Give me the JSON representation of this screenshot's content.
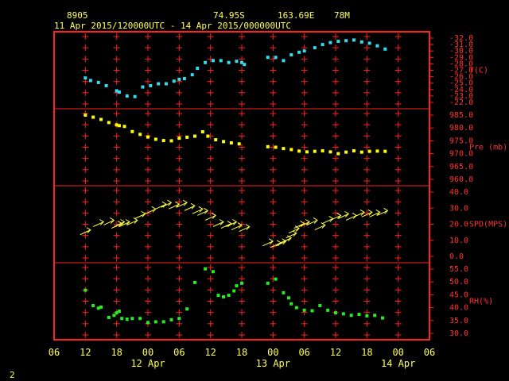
{
  "header": {
    "station_id": "8905",
    "latitude": "74.95S",
    "longitude": "163.69E",
    "elevation": "78M",
    "time_range": "11 Apr 2015/120000UTC - 14 Apr 2015/000000UTC"
  },
  "footer_label": "2",
  "colors": {
    "frame": "#ff2020",
    "text": "#ffff55",
    "temperature": "#33ddee",
    "pressure": "#ffff00",
    "wind": "#ffff44",
    "humidity": "#22ee22"
  },
  "chart_data": {
    "type": "scatter",
    "x_unit": "hours since 11 Apr 2015 06 UTC",
    "x_range": [
      0,
      72
    ],
    "x_tick_labels": [
      "06",
      "12",
      "18",
      "00",
      "06",
      "12",
      "18",
      "00",
      "06",
      "12",
      "18",
      "00",
      "06"
    ],
    "date_labels": [
      {
        "text": "12 Apr",
        "x": 18
      },
      {
        "text": "13 Apr",
        "x": 42
      },
      {
        "text": "14 Apr",
        "x": 66
      }
    ],
    "grid": true,
    "panels": [
      {
        "name": "T(C)",
        "key": "temp",
        "ylim": [
          -32.0,
          -22.0
        ],
        "inverted": true,
        "tick_labels": [
          "-22.0",
          "-23.0",
          "-24.0",
          "-25.0",
          "-26.0",
          "-27.0",
          "-28.0",
          "-29.0",
          "-30.0",
          "-31.0",
          "-32.0"
        ],
        "points": [
          [
            6,
            -25.8
          ],
          [
            7,
            -25.4
          ],
          [
            8.5,
            -25.1
          ],
          [
            10,
            -24.6
          ],
          [
            12,
            -23.8
          ],
          [
            12.5,
            -23.6
          ],
          [
            14,
            -23.0
          ],
          [
            15.5,
            -22.9
          ],
          [
            17,
            -24.4
          ],
          [
            18.5,
            -24.6
          ],
          [
            20,
            -24.9
          ],
          [
            21.5,
            -24.9
          ],
          [
            23,
            -25.3
          ],
          [
            24,
            -25.6
          ],
          [
            25,
            -25.7
          ],
          [
            26.5,
            -26.3
          ],
          [
            27.5,
            -27.3
          ],
          [
            29,
            -28.2
          ],
          [
            30.5,
            -28.5
          ],
          [
            32,
            -28.5
          ],
          [
            33.5,
            -28.2
          ],
          [
            35,
            -28.4
          ],
          [
            36,
            -28.2
          ],
          [
            36.5,
            -27.9
          ],
          [
            41,
            -29.0
          ],
          [
            42.5,
            -29.0
          ],
          [
            44,
            -28.5
          ],
          [
            45.5,
            -29.4
          ],
          [
            47,
            -29.8
          ],
          [
            48,
            -30.0
          ],
          [
            50,
            -30.5
          ],
          [
            51.5,
            -31.0
          ],
          [
            53,
            -31.3
          ],
          [
            54.5,
            -31.5
          ],
          [
            56,
            -31.6
          ],
          [
            57.5,
            -31.7
          ],
          [
            59,
            -31.4
          ],
          [
            60.5,
            -31.2
          ],
          [
            62,
            -30.8
          ],
          [
            63.5,
            -30.3
          ]
        ]
      },
      {
        "name": "Pre (mb)",
        "key": "pres",
        "ylim": [
          960.0,
          985.0
        ],
        "tick_labels": [
          "960.0",
          "965.0",
          "970.0",
          "975.0",
          "980.0",
          "985.0"
        ],
        "points": [
          [
            6,
            985.0
          ],
          [
            7.5,
            984.2
          ],
          [
            9,
            983.3
          ],
          [
            10.5,
            982.1
          ],
          [
            12,
            981.2
          ],
          [
            12.5,
            980.9
          ],
          [
            13.5,
            980.6
          ],
          [
            15,
            978.6
          ],
          [
            16.5,
            977.5
          ],
          [
            18,
            976.5
          ],
          [
            19.5,
            975.6
          ],
          [
            21,
            975.1
          ],
          [
            22.5,
            975.0
          ],
          [
            24,
            976.0
          ],
          [
            25.5,
            976.4
          ],
          [
            27,
            976.8
          ],
          [
            28.5,
            978.5
          ],
          [
            29.5,
            976.8
          ],
          [
            31,
            975.4
          ],
          [
            32.5,
            974.7
          ],
          [
            34,
            974.2
          ],
          [
            35.5,
            973.8
          ],
          [
            41,
            972.7
          ],
          [
            42.5,
            972.5
          ],
          [
            44,
            972.0
          ],
          [
            45.5,
            971.6
          ],
          [
            47,
            971.0
          ],
          [
            48.5,
            970.7
          ],
          [
            50,
            970.9
          ],
          [
            51.5,
            971.1
          ],
          [
            53,
            970.7
          ],
          [
            54.5,
            970.0
          ],
          [
            56,
            970.6
          ],
          [
            57.5,
            971.1
          ],
          [
            59,
            970.6
          ],
          [
            60.5,
            970.9
          ],
          [
            62,
            971.0
          ],
          [
            63.5,
            970.9
          ]
        ]
      },
      {
        "name": "SPD(MPS)",
        "key": "spd",
        "ylim": [
          0.0,
          40.0
        ],
        "tick_labels": [
          "0.0",
          "10.0",
          "20.0",
          "30.0",
          "40.0"
        ],
        "points": [
          [
            6,
            15
          ],
          [
            8.5,
            20
          ],
          [
            10.5,
            21
          ],
          [
            12,
            19
          ],
          [
            12.5,
            20
          ],
          [
            13.5,
            20
          ],
          [
            15,
            21
          ],
          [
            16.5,
            25
          ],
          [
            18.5,
            28
          ],
          [
            20.5,
            31
          ],
          [
            21.5,
            32
          ],
          [
            23,
            31
          ],
          [
            24.5,
            32
          ],
          [
            26,
            30
          ],
          [
            27.5,
            28
          ],
          [
            28.5,
            27
          ],
          [
            30,
            24
          ],
          [
            31.5,
            20
          ],
          [
            33,
            19
          ],
          [
            34,
            20
          ],
          [
            35,
            18
          ],
          [
            36.5,
            17
          ],
          [
            41,
            8
          ],
          [
            42.5,
            7
          ],
          [
            43.5,
            8
          ],
          [
            44.5,
            10
          ],
          [
            45.5,
            13
          ],
          [
            46,
            16
          ],
          [
            47,
            19
          ],
          [
            48,
            20
          ],
          [
            49.5,
            21
          ],
          [
            51,
            18
          ],
          [
            52.5,
            22
          ],
          [
            54,
            24
          ],
          [
            55.5,
            25
          ],
          [
            57,
            24
          ],
          [
            58.5,
            26
          ],
          [
            60,
            26
          ],
          [
            61.5,
            26
          ],
          [
            63,
            27
          ]
        ]
      },
      {
        "name": "RH(%)",
        "key": "rh",
        "ylim": [
          30.0,
          55.0
        ],
        "tick_labels": [
          "30.0",
          "35.0",
          "40.0",
          "45.0",
          "50.0",
          "55.0"
        ],
        "points": [
          [
            6,
            46.8
          ],
          [
            7.5,
            40.8
          ],
          [
            8.5,
            39.8
          ],
          [
            9,
            40.2
          ],
          [
            10.5,
            36.2
          ],
          [
            11.5,
            37.0
          ],
          [
            12,
            38.0
          ],
          [
            12.5,
            38.6
          ],
          [
            13,
            35.8
          ],
          [
            14,
            35.5
          ],
          [
            15,
            35.8
          ],
          [
            16.5,
            35.8
          ],
          [
            18,
            34.2
          ],
          [
            19.5,
            34.5
          ],
          [
            21,
            34.5
          ],
          [
            22.5,
            35.3
          ],
          [
            24,
            35.8
          ],
          [
            25.5,
            39.5
          ],
          [
            27,
            49.8
          ],
          [
            29,
            55.1
          ],
          [
            30.5,
            54.0
          ],
          [
            31.5,
            44.8
          ],
          [
            32.5,
            44.2
          ],
          [
            33.5,
            44.8
          ],
          [
            34.5,
            46.5
          ],
          [
            35,
            48.5
          ],
          [
            36,
            49.5
          ],
          [
            41,
            49.5
          ],
          [
            42.5,
            51.1
          ],
          [
            44,
            45.8
          ],
          [
            45,
            43.8
          ],
          [
            45.5,
            41.5
          ],
          [
            46.5,
            40.0
          ],
          [
            48,
            39.0
          ],
          [
            49.5,
            38.8
          ],
          [
            51,
            40.8
          ],
          [
            52.5,
            39.0
          ],
          [
            54,
            38.0
          ],
          [
            55.5,
            37.6
          ],
          [
            57,
            37.0
          ],
          [
            58.5,
            37.4
          ],
          [
            60,
            36.8
          ],
          [
            61.5,
            37.0
          ],
          [
            63,
            36.0
          ]
        ]
      }
    ]
  }
}
